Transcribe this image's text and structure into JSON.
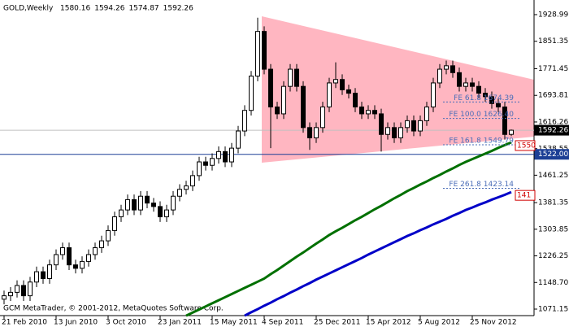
{
  "chart_data": {
    "type": "candlestick",
    "title": "GOLD,Weekly",
    "footer": "GCM MetaTrader, © 2001-2012, MetaQuotes Software Corp.",
    "categories": [
      "21 Feb 2010",
      null,
      null,
      null,
      null,
      null,
      null,
      null,
      "13 Jun 2010",
      null,
      null,
      null,
      null,
      null,
      null,
      null,
      "3 Oct 2010",
      null,
      null,
      null,
      null,
      null,
      null,
      null,
      "23 Jan 2011",
      null,
      null,
      null,
      null,
      null,
      null,
      null,
      "15 May 2011",
      null,
      null,
      null,
      null,
      null,
      null,
      null,
      "4 Sep 2011",
      null,
      null,
      null,
      null,
      null,
      null,
      null,
      "25 Dec 2011",
      null,
      null,
      null,
      null,
      null,
      null,
      null,
      "15 Apr 2012",
      null,
      null,
      null,
      null,
      null,
      null,
      null,
      "5 Aug 2012",
      null,
      null,
      null,
      null,
      null,
      null,
      null,
      "25 Nov 2012",
      null,
      null,
      null,
      null,
      null,
      null
    ],
    "open": [
      1100,
      1110,
      1120,
      1140,
      1110,
      1150,
      1180,
      1160,
      1200,
      1230,
      1250,
      1200,
      1190,
      1210,
      1230,
      1250,
      1270,
      1300,
      1340,
      1360,
      1390,
      1360,
      1400,
      1380,
      1370,
      1340,
      1360,
      1400,
      1420,
      1430,
      1460,
      1500,
      1490,
      1510,
      1530,
      1500,
      1540,
      1590,
      1650,
      1750,
      1880,
      1770,
      1660,
      1640,
      1720,
      1770,
      1720,
      1600,
      1570,
      1600,
      1660,
      1730,
      1740,
      1710,
      1700,
      1660,
      1640,
      1650,
      1640,
      1580,
      1600,
      1570,
      1600,
      1620,
      1590,
      1620,
      1660,
      1730,
      1770,
      1780,
      1760,
      1720,
      1730,
      1720,
      1700,
      1690,
      1670,
      1660,
      1580.16
    ],
    "high": [
      1125,
      1135,
      1155,
      1155,
      1165,
      1195,
      1195,
      1215,
      1245,
      1265,
      1265,
      1215,
      1225,
      1245,
      1265,
      1285,
      1315,
      1355,
      1375,
      1405,
      1405,
      1415,
      1415,
      1395,
      1385,
      1375,
      1415,
      1435,
      1445,
      1475,
      1515,
      1515,
      1525,
      1545,
      1545,
      1555,
      1605,
      1665,
      1765,
      1920,
      1895,
      1785,
      1675,
      1735,
      1785,
      1785,
      1735,
      1615,
      1615,
      1675,
      1745,
      1790,
      1755,
      1725,
      1715,
      1675,
      1665,
      1665,
      1655,
      1615,
      1615,
      1615,
      1635,
      1635,
      1635,
      1675,
      1745,
      1785,
      1795,
      1795,
      1775,
      1745,
      1745,
      1735,
      1715,
      1705,
      1685,
      1675,
      1594.26
    ],
    "low": [
      1085,
      1095,
      1105,
      1095,
      1095,
      1135,
      1145,
      1145,
      1185,
      1215,
      1185,
      1175,
      1175,
      1195,
      1215,
      1235,
      1255,
      1285,
      1325,
      1345,
      1345,
      1345,
      1365,
      1355,
      1325,
      1325,
      1345,
      1385,
      1405,
      1415,
      1445,
      1475,
      1475,
      1495,
      1485,
      1485,
      1525,
      1575,
      1635,
      1735,
      1755,
      1540,
      1625,
      1625,
      1705,
      1705,
      1585,
      1535,
      1555,
      1585,
      1645,
      1715,
      1695,
      1685,
      1645,
      1625,
      1625,
      1625,
      1530,
      1565,
      1555,
      1555,
      1585,
      1575,
      1575,
      1605,
      1645,
      1715,
      1755,
      1745,
      1705,
      1705,
      1705,
      1685,
      1675,
      1655,
      1645,
      1565,
      1574.87
    ],
    "close": [
      1110,
      1120,
      1140,
      1110,
      1150,
      1180,
      1160,
      1200,
      1230,
      1250,
      1200,
      1190,
      1210,
      1230,
      1250,
      1270,
      1300,
      1340,
      1360,
      1390,
      1360,
      1400,
      1380,
      1370,
      1340,
      1360,
      1400,
      1420,
      1430,
      1460,
      1500,
      1490,
      1510,
      1530,
      1500,
      1540,
      1590,
      1650,
      1750,
      1880,
      1770,
      1660,
      1640,
      1720,
      1770,
      1720,
      1600,
      1570,
      1600,
      1660,
      1730,
      1740,
      1710,
      1700,
      1660,
      1640,
      1650,
      1640,
      1580,
      1600,
      1570,
      1600,
      1620,
      1590,
      1620,
      1660,
      1730,
      1770,
      1780,
      1760,
      1720,
      1730,
      1720,
      1700,
      1690,
      1670,
      1660,
      1580,
      1592.26
    ],
    "moving_averages": [
      {
        "color": "#007000",
        "marker": "1550",
        "values": [
          null,
          null,
          null,
          null,
          null,
          null,
          null,
          null,
          null,
          null,
          null,
          null,
          null,
          null,
          null,
          null,
          null,
          null,
          null,
          null,
          null,
          null,
          null,
          null,
          null,
          null,
          null,
          null,
          1052,
          1061,
          1070,
          1079,
          1088,
          1097,
          1106,
          1115,
          1124,
          1133,
          1142,
          1151,
          1160,
          1173,
          1185,
          1198,
          1211,
          1224,
          1236,
          1249,
          1262,
          1274,
          1287,
          1298,
          1308,
          1319,
          1330,
          1340,
          1351,
          1362,
          1372,
          1383,
          1394,
          1404,
          1415,
          1424,
          1434,
          1443,
          1453,
          1462,
          1472,
          1481,
          1491,
          1500,
          1508,
          1516,
          1524,
          1532,
          1541,
          1549,
          1557
        ]
      },
      {
        "color": "#0000c8",
        "marker": "141",
        "values": [
          null,
          null,
          null,
          null,
          null,
          null,
          null,
          null,
          null,
          null,
          null,
          null,
          null,
          null,
          null,
          null,
          null,
          null,
          null,
          null,
          null,
          null,
          null,
          null,
          null,
          null,
          null,
          null,
          null,
          null,
          null,
          null,
          null,
          null,
          null,
          null,
          null,
          1052,
          1062,
          1071,
          1081,
          1090,
          1100,
          1109,
          1119,
          1128,
          1138,
          1147,
          1157,
          1166,
          1175,
          1184,
          1193,
          1202,
          1211,
          1220,
          1230,
          1239,
          1248,
          1257,
          1266,
          1275,
          1284,
          1292,
          1301,
          1309,
          1318,
          1326,
          1334,
          1343,
          1351,
          1360,
          1367,
          1375,
          1382,
          1390,
          1397,
          1404,
          1412
        ]
      }
    ],
    "levels": [
      {
        "value": 1522,
        "label": "1522.00",
        "color": "#1c3f95"
      }
    ],
    "fibo": [
      {
        "value": 1674.39,
        "label": "FE 61.8 1674.39"
      },
      {
        "value": 1626.4,
        "label": "FE 100.0 1626.40"
      },
      {
        "value": 1549.79,
        "label": "FE 161.8 1549.79"
      },
      {
        "value": 1423.14,
        "label": "FE 261.8 1423.14"
      }
    ],
    "ylim": [
      1052.2,
      1971.6
    ],
    "yticks": [
      1928.99,
      1851.35,
      1771.45,
      1693.81,
      1616.26,
      1538.55,
      1461.25,
      1381.35,
      1303.85,
      1226.25,
      {
        "value": 1148.7,
        "label": "1148.70"
      },
      1071.15
    ],
    "grid": false
  }
}
